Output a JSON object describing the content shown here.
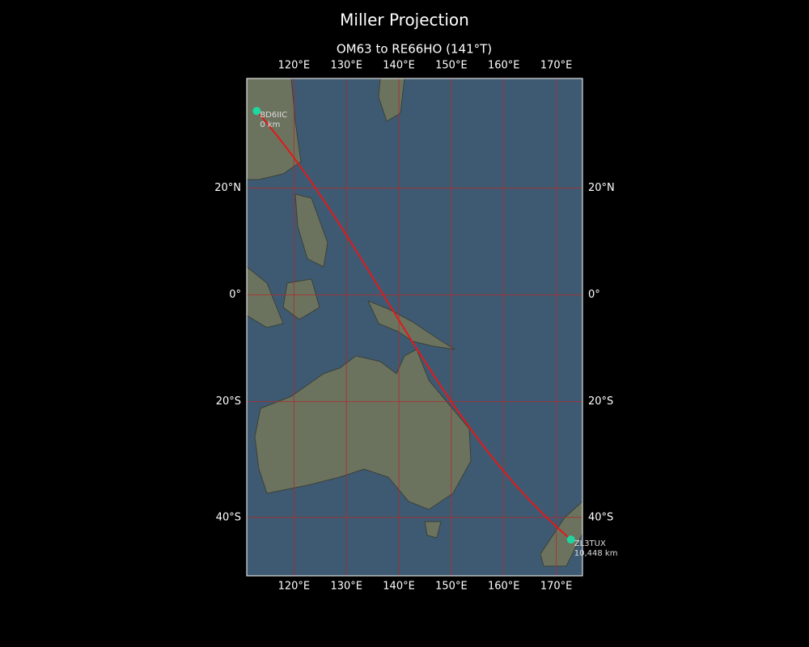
{
  "chart_data": {
    "type": "map",
    "title": "Miller Projection",
    "subtitle": "OM63 to RE66HO (141°T)",
    "projection": "miller",
    "xlim": [
      111,
      175
    ],
    "ylim": [
      -49,
      39
    ],
    "xticks": [
      {
        "value": 120,
        "label": "120°E"
      },
      {
        "value": 130,
        "label": "130°E"
      },
      {
        "value": 140,
        "label": "140°E"
      },
      {
        "value": 150,
        "label": "150°E"
      },
      {
        "value": 160,
        "label": "160°E"
      },
      {
        "value": 170,
        "label": "170°E"
      }
    ],
    "yticks": [
      {
        "value": 20,
        "label": "20°N"
      },
      {
        "value": 0,
        "label": "0°"
      },
      {
        "value": -20,
        "label": "20°S"
      },
      {
        "value": -40,
        "label": "40°S"
      }
    ],
    "grid": true,
    "grid_color": "#b02a2a",
    "route_color": "#e01a1a",
    "marker_color": "#1fd6a0",
    "stations": [
      {
        "name": "BD6IIC",
        "distance": "0 km",
        "lon": 112.9,
        "lat": 33.6
      },
      {
        "name": "ZL3TUX",
        "distance": "10,448 km",
        "lon": 172.8,
        "lat": -43.5
      }
    ]
  }
}
